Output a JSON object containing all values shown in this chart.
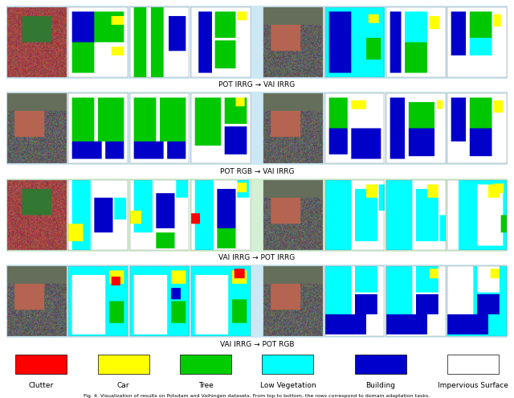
{
  "background_color": "#ffffff",
  "outer_bg": "#e8f4f8",
  "row_labels": [
    "POT IRRG → VAI IRRG",
    "POT RGB → VAI IRRG",
    "VAI IRRG → POT IRRG",
    "VAI IRRG → POT RGB"
  ],
  "row_bg_colors": [
    "#cce8f4",
    "#cce8f4",
    "#d4f0d4",
    "#cce8f4"
  ],
  "legend_items": [
    {
      "label": "Clutter",
      "color": "#ff0000"
    },
    {
      "label": "Car",
      "color": "#ffff00"
    },
    {
      "label": "Tree",
      "color": "#00cc00"
    },
    {
      "label": "Low Vegetation",
      "color": "#00ffff"
    },
    {
      "label": "Building",
      "color": "#0000cc"
    },
    {
      "label": "Impervious Surface",
      "color": "#ffffff"
    }
  ],
  "caption": "Fig. 4. Visualization of results on Potsdam and Vaihingen datasets. From top to bottom, the rows correspond to domain adaptation tasks.",
  "n_rows": 4,
  "n_cols_per_group": 4,
  "n_groups": 2
}
